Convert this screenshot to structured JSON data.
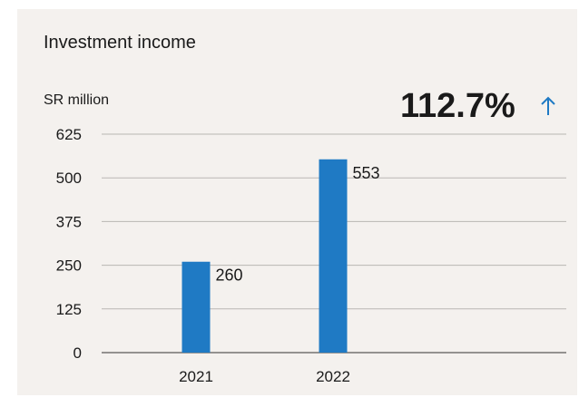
{
  "chart_data": {
    "type": "bar",
    "title": "Investment income",
    "ylabel": "SR million",
    "change_label": "112.7%",
    "change_direction": "up-arrow-icon",
    "categories": [
      "2021",
      "2022"
    ],
    "values": [
      260,
      553
    ],
    "value_labels": [
      "260",
      "553"
    ],
    "yticks": [
      "625",
      "500",
      "375",
      "250",
      "125",
      "0"
    ],
    "ytick_values": [
      625,
      500,
      375,
      250,
      125,
      0
    ],
    "ylim": [
      0,
      625
    ],
    "grid": true,
    "legend": "none",
    "colors": {
      "bar": "#1f7ac4",
      "grid": "#b9b6b3",
      "accent": "#1f7ac4",
      "background": "#f4f1ee"
    }
  }
}
